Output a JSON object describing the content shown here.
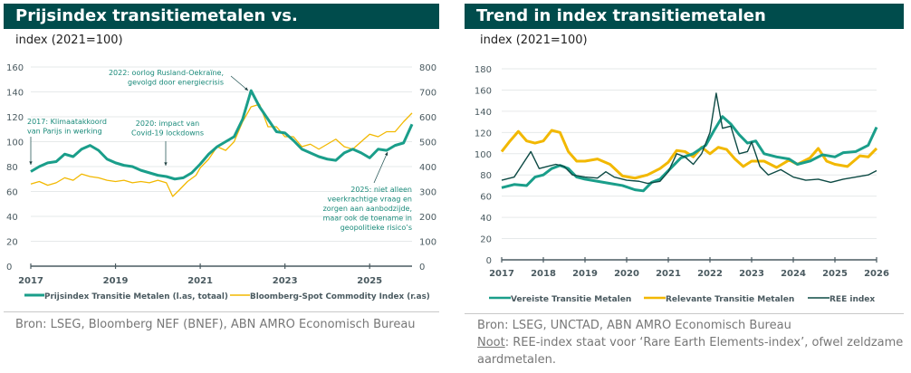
{
  "left": {
    "title": "Prijsindex transitiemetalen vs. grondstoffenindex",
    "subtitle": "index (2021=100)",
    "source": "Bron: LSEG, Bloomberg NEF (BNEF), ABN AMRO Economisch Bureau"
  },
  "right": {
    "title": "Trend in index transitiemetalen",
    "subtitle": "index (2021=100)",
    "source": "Bron: LSEG, UNCTAD, ABN AMRO Economisch Bureau",
    "note_label": "Noot",
    "note_text": ": REE-index staat voor ‘Rare Earth Elements-index’, ofwel zeldzame aardmetalen."
  },
  "colors": {
    "title_bg": "#004c4c",
    "teal": "#1a9e8a",
    "yellow": "#f2b800",
    "dark": "#0d4a44",
    "grid": "#e6e9ea",
    "axis": "#4a5a60"
  },
  "chart_data": [
    {
      "type": "line",
      "title": "Prijsindex transitiemetalen vs. grondstoffenindex",
      "ylabel": "index (2021=100)",
      "xlim": [
        2017,
        2026
      ],
      "ylim": [
        0,
        160
      ],
      "ylim_right": [
        0,
        800
      ],
      "x_ticks": [
        "2017",
        "2019",
        "2021",
        "2023",
        "2025"
      ],
      "y_ticks": [
        0,
        20,
        40,
        60,
        80,
        100,
        120,
        140,
        160
      ],
      "y_ticks_right": [
        0,
        100,
        200,
        300,
        400,
        500,
        600,
        700,
        800
      ],
      "grid": true,
      "legend_position": "bottom",
      "series": [
        {
          "name": "Prijsindex Transitie Metalen (l.as, totaal)",
          "axis": "left",
          "color": "#1a9e8a",
          "x": [
            2017.0,
            2017.2,
            2017.4,
            2017.6,
            2017.8,
            2018.0,
            2018.2,
            2018.4,
            2018.6,
            2018.8,
            2019.0,
            2019.2,
            2019.4,
            2019.6,
            2019.8,
            2020.0,
            2020.2,
            2020.4,
            2020.6,
            2020.8,
            2021.0,
            2021.2,
            2021.4,
            2021.6,
            2021.8,
            2022.0,
            2022.2,
            2022.4,
            2022.6,
            2022.8,
            2023.0,
            2023.2,
            2023.4,
            2023.6,
            2023.8,
            2024.0,
            2024.2,
            2024.4,
            2024.6,
            2024.8,
            2025.0,
            2025.2,
            2025.4,
            2025.6,
            2025.8,
            2026.0
          ],
          "values": [
            76,
            80,
            83,
            84,
            90,
            88,
            94,
            97,
            93,
            86,
            83,
            81,
            80,
            77,
            75,
            73,
            72,
            70,
            71,
            75,
            82,
            90,
            96,
            100,
            104,
            118,
            141,
            128,
            118,
            108,
            107,
            101,
            94,
            91,
            88,
            86,
            85,
            91,
            94,
            91,
            87,
            94,
            93,
            97,
            99,
            114
          ]
        },
        {
          "name": "Bloomberg-Spot Commodity Index (r.as)",
          "axis": "right",
          "color": "#f2b800",
          "x": [
            2017.0,
            2017.2,
            2017.4,
            2017.6,
            2017.8,
            2018.0,
            2018.2,
            2018.4,
            2018.6,
            2018.8,
            2019.0,
            2019.2,
            2019.4,
            2019.6,
            2019.8,
            2020.0,
            2020.2,
            2020.35,
            2020.5,
            2020.7,
            2020.9,
            2021.0,
            2021.2,
            2021.4,
            2021.6,
            2021.8,
            2022.0,
            2022.2,
            2022.4,
            2022.6,
            2022.8,
            2023.0,
            2023.2,
            2023.4,
            2023.6,
            2023.8,
            2024.0,
            2024.2,
            2024.4,
            2024.6,
            2024.8,
            2025.0,
            2025.2,
            2025.4,
            2025.6,
            2025.8,
            2026.0
          ],
          "values": [
            330,
            340,
            325,
            335,
            355,
            345,
            370,
            360,
            355,
            345,
            340,
            345,
            335,
            340,
            335,
            345,
            335,
            280,
            305,
            340,
            365,
            395,
            430,
            480,
            465,
            500,
            580,
            640,
            650,
            560,
            560,
            520,
            520,
            480,
            490,
            470,
            490,
            510,
            480,
            470,
            500,
            530,
            520,
            540,
            540,
            580,
            615
          ]
        }
      ],
      "annotations": [
        "2017: Klimaatakkoord van Parijs in werking",
        "2020: impact van Covid-19 lockdowns",
        "2022: oorlog Rusland-Oekraïne, gevolgd door energiecrisis",
        "2025: niet alleen veerkrachtige vraag en zorgen aan aanbodzijde, maar ook de toename in geopolitieke risico's"
      ]
    },
    {
      "type": "line",
      "title": "Trend in index transitiemetalen",
      "ylabel": "index (2021=100)",
      "xlim": [
        2017,
        2026
      ],
      "ylim": [
        0,
        180
      ],
      "x_ticks": [
        "2017",
        "2018",
        "2019",
        "2020",
        "2021",
        "2022",
        "2023",
        "2024",
        "2025",
        "2026"
      ],
      "y_ticks": [
        0,
        20,
        40,
        60,
        80,
        100,
        120,
        140,
        160,
        180
      ],
      "grid": true,
      "legend_position": "bottom",
      "series": [
        {
          "name": "Vereiste Transitie Metalen",
          "color": "#1a9e8a",
          "x": [
            2017.0,
            2017.3,
            2017.6,
            2017.8,
            2018.0,
            2018.2,
            2018.4,
            2018.6,
            2018.8,
            2019.0,
            2019.3,
            2019.6,
            2019.9,
            2020.2,
            2020.4,
            2020.6,
            2020.8,
            2021.0,
            2021.3,
            2021.6,
            2021.9,
            2022.1,
            2022.3,
            2022.5,
            2022.7,
            2022.9,
            2023.1,
            2023.3,
            2023.6,
            2023.9,
            2024.1,
            2024.4,
            2024.7,
            2025.0,
            2025.2,
            2025.5,
            2025.8,
            2026.0
          ],
          "values": [
            68,
            71,
            70,
            78,
            80,
            86,
            89,
            86,
            78,
            76,
            74,
            72,
            70,
            66,
            65,
            73,
            76,
            84,
            96,
            100,
            108,
            122,
            135,
            128,
            118,
            110,
            112,
            100,
            97,
            95,
            90,
            93,
            99,
            97,
            101,
            102,
            108,
            125
          ]
        },
        {
          "name": "Relevante Transitie Metalen",
          "color": "#f2b800",
          "x": [
            2017.0,
            2017.2,
            2017.4,
            2017.6,
            2017.8,
            2018.0,
            2018.2,
            2018.4,
            2018.6,
            2018.8,
            2019.0,
            2019.3,
            2019.6,
            2019.9,
            2020.2,
            2020.5,
            2020.8,
            2021.0,
            2021.2,
            2021.4,
            2021.6,
            2021.8,
            2022.0,
            2022.2,
            2022.4,
            2022.6,
            2022.8,
            2023.0,
            2023.3,
            2023.6,
            2023.9,
            2024.1,
            2024.4,
            2024.6,
            2024.8,
            2025.0,
            2025.3,
            2025.6,
            2025.8,
            2026.0
          ],
          "values": [
            102,
            112,
            121,
            112,
            110,
            112,
            122,
            120,
            102,
            93,
            93,
            95,
            90,
            79,
            77,
            80,
            86,
            92,
            103,
            102,
            97,
            106,
            100,
            106,
            104,
            95,
            88,
            93,
            93,
            87,
            94,
            90,
            96,
            105,
            93,
            90,
            88,
            98,
            97,
            105
          ]
        },
        {
          "name": "REE index",
          "color": "#0d4a44",
          "x": [
            2017.0,
            2017.3,
            2017.5,
            2017.7,
            2017.9,
            2018.1,
            2018.3,
            2018.5,
            2018.7,
            2019.0,
            2019.3,
            2019.5,
            2019.7,
            2020.0,
            2020.3,
            2020.5,
            2020.8,
            2021.0,
            2021.2,
            2021.4,
            2021.6,
            2021.8,
            2022.0,
            2022.15,
            2022.3,
            2022.5,
            2022.7,
            2022.9,
            2023.0,
            2023.2,
            2023.4,
            2023.7,
            2024.0,
            2024.3,
            2024.6,
            2024.9,
            2025.2,
            2025.5,
            2025.8,
            2026.0
          ],
          "values": [
            75,
            78,
            90,
            102,
            86,
            88,
            90,
            88,
            80,
            78,
            77,
            83,
            78,
            75,
            74,
            72,
            74,
            83,
            100,
            97,
            90,
            100,
            120,
            157,
            124,
            126,
            100,
            102,
            111,
            88,
            80,
            85,
            78,
            75,
            76,
            73,
            76,
            78,
            80,
            84
          ]
        }
      ]
    }
  ],
  "legend": {
    "left": [
      "Prijsindex Transitie Metalen (l.as, totaal)",
      "Bloomberg-Spot Commodity Index (r.as)"
    ],
    "right": [
      "Vereiste Transitie Metalen",
      "Relevante Transitie Metalen",
      "REE index"
    ]
  }
}
